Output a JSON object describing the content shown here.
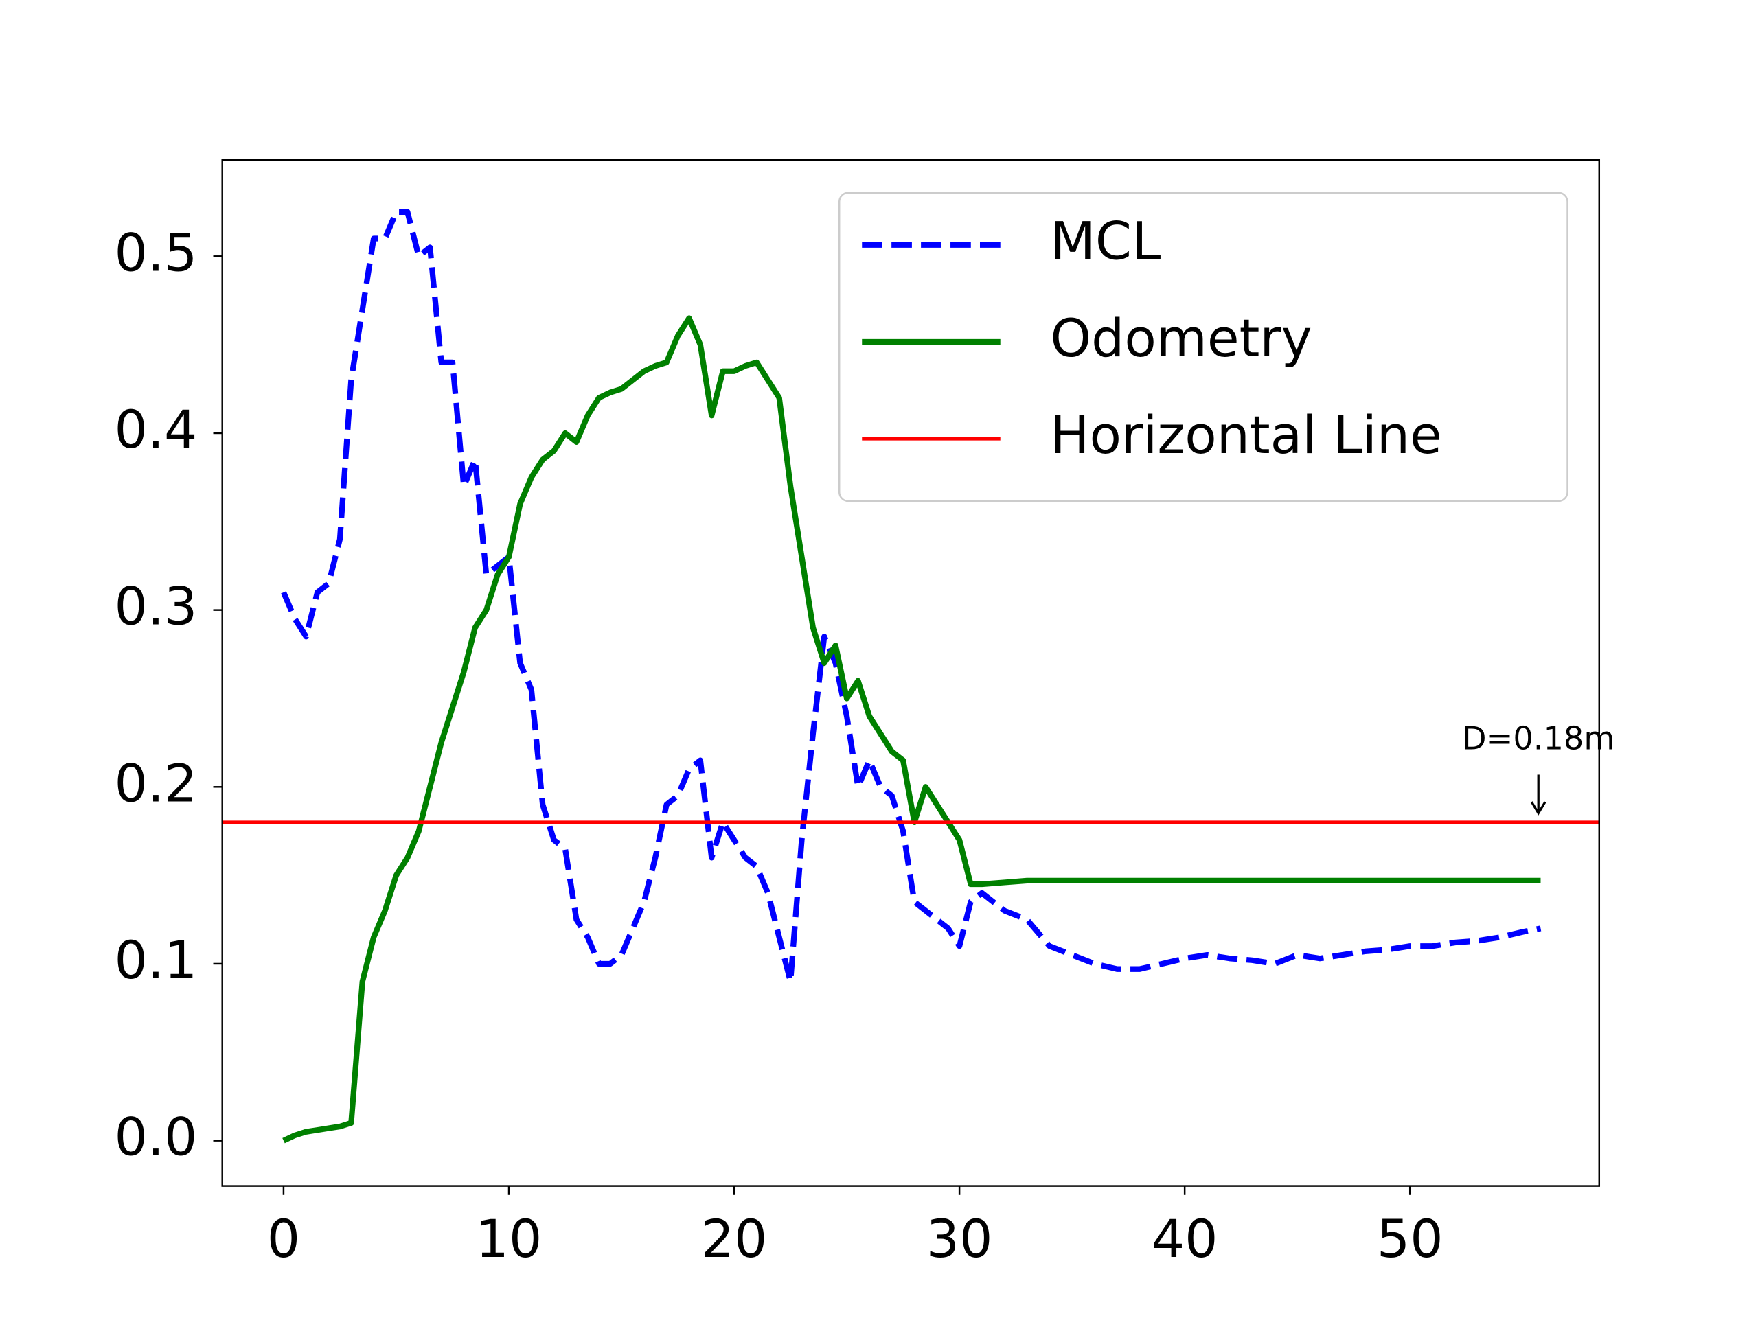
{
  "chart_data": {
    "type": "line",
    "x": [
      0,
      0.5,
      1,
      1.5,
      2,
      2.5,
      3,
      3.5,
      4,
      4.5,
      5,
      5.5,
      6,
      6.5,
      7,
      7.5,
      8,
      8.5,
      9,
      9.5,
      10,
      10.5,
      11,
      11.5,
      12,
      12.5,
      13,
      13.5,
      14,
      14.5,
      15,
      15.5,
      16,
      16.5,
      17,
      17.5,
      18,
      18.5,
      19,
      19.5,
      20,
      20.5,
      21,
      21.5,
      22,
      22.5,
      23,
      23.5,
      24,
      24.5,
      25,
      25.5,
      26,
      26.5,
      27,
      27.5,
      28,
      28.5,
      29,
      29.5,
      30,
      30.5,
      31,
      32,
      33,
      34,
      35,
      36,
      37,
      38,
      39,
      40,
      41,
      42,
      43,
      44,
      45,
      46,
      47,
      48,
      49,
      50,
      51,
      52,
      53,
      54,
      55,
      55.8
    ],
    "series": [
      {
        "name": "MCL",
        "color": "#0000ff",
        "linestyle": "dashed",
        "values": [
          0.31,
          0.295,
          0.285,
          0.31,
          0.315,
          0.34,
          0.43,
          0.47,
          0.51,
          0.51,
          0.525,
          0.525,
          0.5,
          0.505,
          0.44,
          0.44,
          0.37,
          0.385,
          0.32,
          0.325,
          0.33,
          0.27,
          0.255,
          0.19,
          0.17,
          0.165,
          0.125,
          0.115,
          0.1,
          0.1,
          0.105,
          0.12,
          0.135,
          0.16,
          0.19,
          0.195,
          0.21,
          0.215,
          0.16,
          0.18,
          0.17,
          0.16,
          0.155,
          0.14,
          0.115,
          0.09,
          0.17,
          0.23,
          0.285,
          0.27,
          0.24,
          0.2,
          0.215,
          0.2,
          0.195,
          0.175,
          0.135,
          0.13,
          0.125,
          0.12,
          0.11,
          0.135,
          0.14,
          0.13,
          0.125,
          0.11,
          0.105,
          0.1,
          0.097,
          0.097,
          0.1,
          0.103,
          0.105,
          0.103,
          0.102,
          0.1,
          0.105,
          0.103,
          0.105,
          0.107,
          0.108,
          0.11,
          0.11,
          0.112,
          0.113,
          0.115,
          0.118,
          0.12
        ]
      },
      {
        "name": "Odometry",
        "color": "#008000",
        "linestyle": "solid",
        "values": [
          0,
          0.003,
          0.005,
          0.006,
          0.007,
          0.008,
          0.01,
          0.09,
          0.115,
          0.13,
          0.15,
          0.16,
          0.175,
          0.2,
          0.225,
          0.245,
          0.265,
          0.29,
          0.3,
          0.32,
          0.33,
          0.36,
          0.375,
          0.385,
          0.39,
          0.4,
          0.395,
          0.41,
          0.42,
          0.423,
          0.425,
          0.43,
          0.435,
          0.438,
          0.44,
          0.455,
          0.465,
          0.45,
          0.41,
          0.435,
          0.435,
          0.438,
          0.44,
          0.43,
          0.42,
          0.37,
          0.33,
          0.29,
          0.27,
          0.28,
          0.25,
          0.26,
          0.24,
          0.23,
          0.22,
          0.215,
          0.18,
          0.2,
          0.19,
          0.18,
          0.17,
          0.145,
          0.145,
          0.146,
          0.147,
          0.147,
          0.147,
          0.147,
          0.147,
          0.147,
          0.147,
          0.147,
          0.147,
          0.147,
          0.147,
          0.147,
          0.147,
          0.147,
          0.147,
          0.147,
          0.147,
          0.147,
          0.147,
          0.147,
          0.147,
          0.147,
          0.147,
          0.147
        ]
      }
    ],
    "hlines": [
      {
        "name": "Horizontal Line",
        "color": "#ff0000",
        "value": 0.18
      }
    ],
    "annotation": {
      "text": "D=0.18m",
      "x": 55.7,
      "y": 0.18
    },
    "xlim": [
      -2.72,
      58.4
    ],
    "ylim": [
      -0.0256,
      0.5545
    ],
    "xticks": [
      0,
      10,
      20,
      30,
      40,
      50
    ],
    "yticks": [
      {
        "value": 0,
        "label": "0.0"
      },
      0.1,
      0.2,
      0.3,
      0.4,
      0.5
    ],
    "legend": "upper right"
  }
}
